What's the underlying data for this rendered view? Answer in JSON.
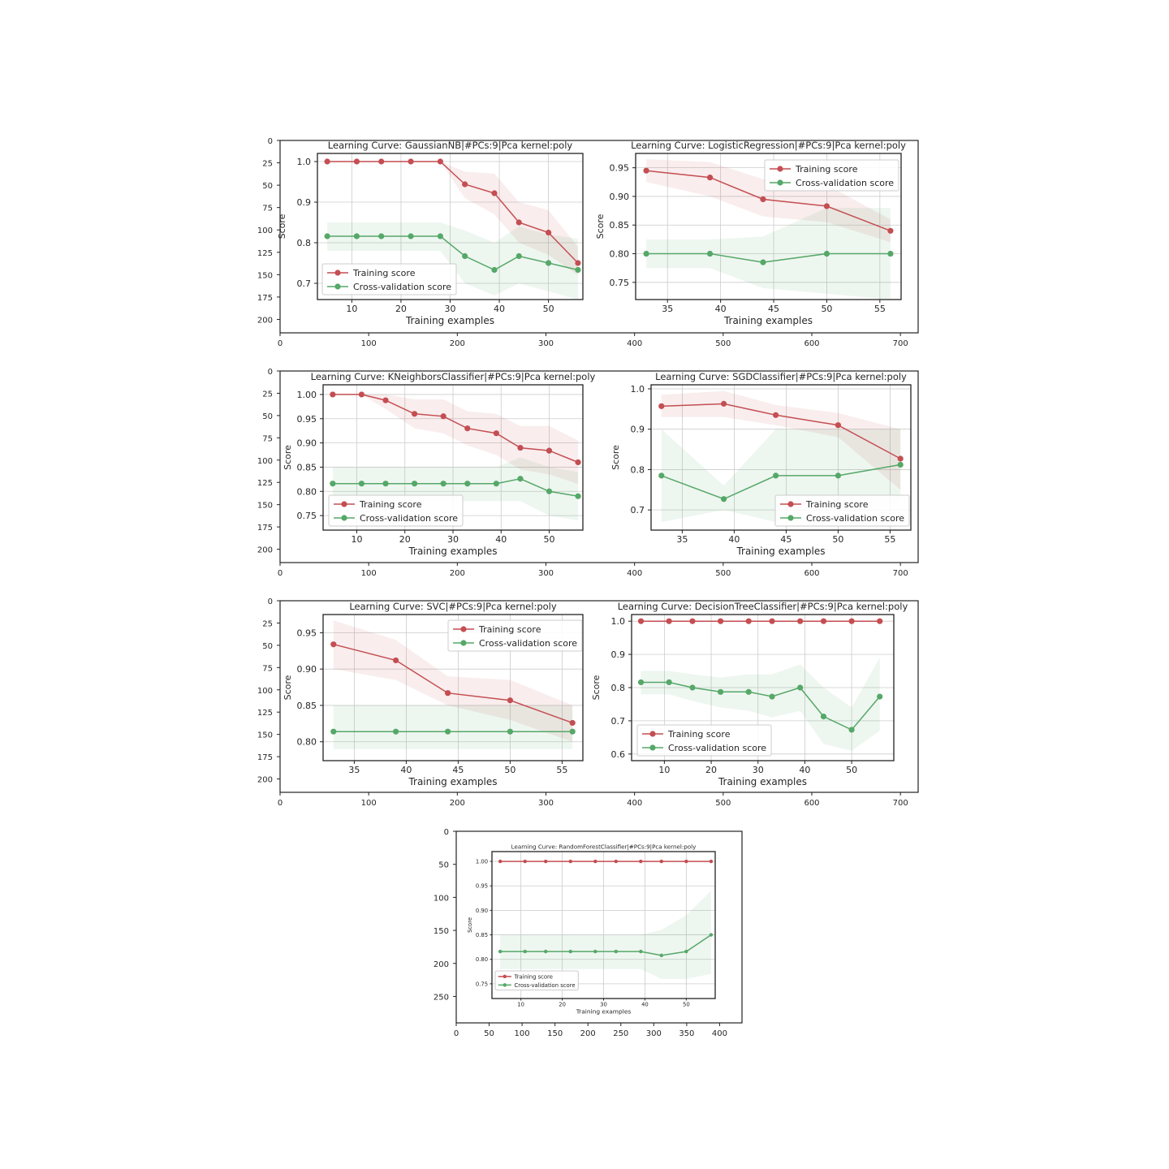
{
  "labels": {
    "training": "Training score",
    "cv": "Cross-validation score",
    "xlabel": "Training examples",
    "ylabel": "Score"
  },
  "colors": {
    "train": "#c44e52",
    "cv": "#55a868",
    "grid": "#cccccc",
    "axis": "#222222"
  },
  "outer_figures": [
    {
      "xticks": [
        0,
        100,
        200,
        300,
        400,
        500,
        600,
        700
      ],
      "yticks": [
        0,
        25,
        50,
        75,
        100,
        125,
        150,
        175,
        200
      ]
    },
    {
      "xticks": [
        0,
        100,
        200,
        300,
        400,
        500,
        600,
        700
      ],
      "yticks": [
        0,
        25,
        50,
        75,
        100,
        125,
        150,
        175,
        200
      ]
    },
    {
      "xticks": [
        0,
        100,
        200,
        300,
        400,
        500,
        600,
        700
      ],
      "yticks": [
        0,
        25,
        50,
        75,
        100,
        125,
        150,
        175,
        200
      ]
    },
    {
      "xticks": [
        0,
        50,
        100,
        150,
        200,
        250,
        300,
        350,
        400
      ],
      "yticks": [
        0,
        50,
        100,
        150,
        200,
        250
      ]
    }
  ],
  "chart_data": [
    {
      "type": "line",
      "title": "Learning Curve: GaussianNB|#PCs:9|Pca kernel:poly",
      "xlabel": "Training examples",
      "ylabel": "Score",
      "xlim": [
        3,
        57
      ],
      "ylim": [
        0.66,
        1.02
      ],
      "xticks": [
        10,
        20,
        30,
        40,
        50
      ],
      "xtick_labels": [
        "10",
        "20",
        "30",
        "40",
        "50"
      ],
      "yticks": [
        0.7,
        0.8,
        0.9,
        1.0
      ],
      "ytick_labels": [
        "0.7",
        "0.8",
        "0.9",
        "1.0"
      ],
      "legend": "bottom-left",
      "x": [
        5,
        11,
        16,
        22,
        28,
        33,
        39,
        44,
        50,
        56
      ],
      "series": [
        {
          "name": "Training score",
          "values": [
            1.0,
            1.0,
            1.0,
            1.0,
            1.0,
            0.944,
            0.922,
            0.85,
            0.825,
            0.75
          ],
          "band_lo": [
            1.0,
            1.0,
            1.0,
            1.0,
            1.0,
            0.91,
            0.87,
            0.8,
            0.77,
            0.72
          ],
          "band_hi": [
            1.0,
            1.0,
            1.0,
            1.0,
            1.0,
            0.975,
            0.97,
            0.9,
            0.88,
            0.79
          ]
        },
        {
          "name": "Cross-validation score",
          "values": [
            0.816,
            0.816,
            0.816,
            0.816,
            0.816,
            0.767,
            0.733,
            0.767,
            0.75,
            0.733
          ],
          "band_lo": [
            0.78,
            0.78,
            0.78,
            0.78,
            0.78,
            0.7,
            0.67,
            0.7,
            0.68,
            0.66
          ],
          "band_hi": [
            0.85,
            0.85,
            0.85,
            0.85,
            0.85,
            0.83,
            0.8,
            0.84,
            0.82,
            0.81
          ]
        }
      ]
    },
    {
      "type": "line",
      "title": "Learning Curve: LogisticRegression|#PCs:9|Pca kernel:poly",
      "xlabel": "Training examples",
      "ylabel": "Score",
      "xlim": [
        32,
        57
      ],
      "ylim": [
        0.72,
        0.975
      ],
      "xticks": [
        35,
        40,
        45,
        50,
        55
      ],
      "xtick_labels": [
        "35",
        "40",
        "45",
        "50",
        "55"
      ],
      "yticks": [
        0.75,
        0.8,
        0.85,
        0.9,
        0.95
      ],
      "ytick_labels": [
        "0.75",
        "0.80",
        "0.85",
        "0.90",
        "0.95"
      ],
      "legend": "top-right",
      "x": [
        33,
        39,
        44,
        50,
        56
      ],
      "series": [
        {
          "name": "Training score",
          "values": [
            0.945,
            0.933,
            0.895,
            0.883,
            0.84
          ],
          "band_lo": [
            0.925,
            0.9,
            0.865,
            0.855,
            0.82
          ],
          "band_hi": [
            0.965,
            0.96,
            0.93,
            0.92,
            0.86
          ]
        },
        {
          "name": "Cross-validation score",
          "values": [
            0.8,
            0.8,
            0.785,
            0.8,
            0.8
          ],
          "band_lo": [
            0.775,
            0.775,
            0.74,
            0.73,
            0.72
          ],
          "band_hi": [
            0.825,
            0.825,
            0.83,
            0.88,
            0.88
          ]
        }
      ]
    },
    {
      "type": "line",
      "title": "Learning Curve: KNeighborsClassifier|#PCs:9|Pca kernel:poly",
      "xlabel": "Training examples",
      "ylabel": "Score",
      "xlim": [
        3,
        57
      ],
      "ylim": [
        0.72,
        1.02
      ],
      "xticks": [
        10,
        20,
        30,
        40,
        50
      ],
      "xtick_labels": [
        "10",
        "20",
        "30",
        "40",
        "50"
      ],
      "yticks": [
        0.75,
        0.8,
        0.85,
        0.9,
        0.95,
        1.0
      ],
      "ytick_labels": [
        "0.75",
        "0.80",
        "0.85",
        "0.90",
        "0.95",
        "1.00"
      ],
      "legend": "bottom-left",
      "x": [
        5,
        11,
        16,
        22,
        28,
        33,
        39,
        44,
        50,
        56
      ],
      "series": [
        {
          "name": "Training score",
          "values": [
            1.0,
            1.0,
            0.988,
            0.96,
            0.955,
            0.93,
            0.92,
            0.89,
            0.884,
            0.86
          ],
          "band_lo": [
            1.0,
            1.0,
            0.97,
            0.93,
            0.92,
            0.895,
            0.875,
            0.845,
            0.835,
            0.815
          ],
          "band_hi": [
            1.0,
            1.0,
            1.0,
            0.99,
            0.99,
            0.965,
            0.96,
            0.935,
            0.935,
            0.905
          ]
        },
        {
          "name": "Cross-validation score",
          "values": [
            0.816,
            0.816,
            0.816,
            0.816,
            0.816,
            0.816,
            0.816,
            0.826,
            0.8,
            0.79
          ],
          "band_lo": [
            0.78,
            0.78,
            0.78,
            0.78,
            0.78,
            0.78,
            0.78,
            0.78,
            0.75,
            0.74
          ],
          "band_hi": [
            0.85,
            0.85,
            0.85,
            0.85,
            0.85,
            0.85,
            0.85,
            0.87,
            0.85,
            0.84
          ]
        }
      ]
    },
    {
      "type": "line",
      "title": "Learning Curve: SGDClassifier|#PCs:9|Pca kernel:poly",
      "xlabel": "Training examples",
      "ylabel": "Score",
      "xlim": [
        32,
        57
      ],
      "ylim": [
        0.65,
        1.01
      ],
      "xticks": [
        35,
        40,
        45,
        50,
        55
      ],
      "xtick_labels": [
        "35",
        "40",
        "45",
        "50",
        "55"
      ],
      "yticks": [
        0.7,
        0.8,
        0.9,
        1.0
      ],
      "ytick_labels": [
        "0.7",
        "0.8",
        "0.9",
        "1.0"
      ],
      "legend": "bottom-right",
      "x": [
        33,
        39,
        44,
        50,
        56
      ],
      "series": [
        {
          "name": "Training score",
          "values": [
            0.957,
            0.963,
            0.935,
            0.91,
            0.827
          ],
          "band_lo": [
            0.93,
            0.93,
            0.91,
            0.88,
            0.75
          ],
          "band_hi": [
            0.985,
            0.995,
            0.96,
            0.94,
            0.9
          ]
        },
        {
          "name": "Cross-validation score",
          "values": [
            0.785,
            0.727,
            0.785,
            0.785,
            0.812
          ],
          "band_lo": [
            0.67,
            0.7,
            0.67,
            0.67,
            0.72
          ],
          "band_hi": [
            0.9,
            0.76,
            0.9,
            0.9,
            0.9
          ]
        }
      ]
    },
    {
      "type": "line",
      "title": "Learning Curve: SVC|#PCs:9|Pca kernel:poly",
      "xlabel": "Training examples",
      "ylabel": "Score",
      "xlim": [
        32,
        57
      ],
      "ylim": [
        0.774,
        0.975
      ],
      "xticks": [
        35,
        40,
        45,
        50,
        55
      ],
      "xtick_labels": [
        "35",
        "40",
        "45",
        "50",
        "55"
      ],
      "yticks": [
        0.8,
        0.85,
        0.9,
        0.95
      ],
      "ytick_labels": [
        "0.80",
        "0.85",
        "0.90",
        "0.95"
      ],
      "legend": "top-right",
      "x": [
        33,
        39,
        44,
        50,
        56
      ],
      "series": [
        {
          "name": "Training score",
          "values": [
            0.934,
            0.912,
            0.867,
            0.857,
            0.826
          ],
          "band_lo": [
            0.9,
            0.885,
            0.85,
            0.83,
            0.8
          ],
          "band_hi": [
            0.967,
            0.94,
            0.89,
            0.885,
            0.85
          ]
        },
        {
          "name": "Cross-validation score",
          "values": [
            0.814,
            0.814,
            0.814,
            0.814,
            0.814
          ],
          "band_lo": [
            0.79,
            0.79,
            0.79,
            0.79,
            0.79
          ],
          "band_hi": [
            0.85,
            0.85,
            0.85,
            0.85,
            0.85
          ]
        }
      ]
    },
    {
      "type": "line",
      "title": "Learning Curve: DecisionTreeClassifier|#PCs:9|Pca kernel:poly",
      "xlabel": "Training examples",
      "ylabel": "Score",
      "xlim": [
        3,
        59
      ],
      "ylim": [
        0.58,
        1.02
      ],
      "xticks": [
        10,
        20,
        30,
        40,
        50
      ],
      "xtick_labels": [
        "10",
        "20",
        "30",
        "40",
        "50"
      ],
      "yticks": [
        0.6,
        0.7,
        0.8,
        0.9,
        1.0
      ],
      "ytick_labels": [
        "0.6",
        "0.7",
        "0.8",
        "0.9",
        "1.0"
      ],
      "legend": "bottom-left",
      "x": [
        5,
        11,
        16,
        22,
        28,
        33,
        39,
        44,
        50,
        56
      ],
      "series": [
        {
          "name": "Training score",
          "values": [
            1.0,
            1.0,
            1.0,
            1.0,
            1.0,
            1.0,
            1.0,
            1.0,
            1.0,
            1.0
          ],
          "band_lo": [
            1.0,
            1.0,
            1.0,
            1.0,
            1.0,
            1.0,
            1.0,
            1.0,
            1.0,
            1.0
          ],
          "band_hi": [
            1.0,
            1.0,
            1.0,
            1.0,
            1.0,
            1.0,
            1.0,
            1.0,
            1.0,
            1.0
          ]
        },
        {
          "name": "Cross-validation score",
          "values": [
            0.816,
            0.816,
            0.8,
            0.787,
            0.787,
            0.773,
            0.8,
            0.713,
            0.673,
            0.773
          ],
          "band_lo": [
            0.78,
            0.78,
            0.76,
            0.74,
            0.73,
            0.71,
            0.73,
            0.63,
            0.61,
            0.67
          ],
          "band_hi": [
            0.85,
            0.85,
            0.84,
            0.83,
            0.84,
            0.84,
            0.87,
            0.8,
            0.74,
            0.89
          ]
        }
      ]
    },
    {
      "type": "line",
      "title": "Learning Curve: RandomForestClassifier|#PCs:9|Pca kernel:poly",
      "xlabel": "Training examples",
      "ylabel": "Score",
      "xlim": [
        3,
        57
      ],
      "ylim": [
        0.72,
        1.02
      ],
      "xticks": [
        10,
        20,
        30,
        40,
        50
      ],
      "xtick_labels": [
        "10",
        "20",
        "30",
        "40",
        "50"
      ],
      "yticks": [
        0.75,
        0.8,
        0.85,
        0.9,
        0.95,
        1.0
      ],
      "ytick_labels": [
        "0.75",
        "0.80",
        "0.85",
        "0.90",
        "0.95",
        "1.00"
      ],
      "legend": "bottom-left",
      "x": [
        5,
        11,
        16,
        22,
        28,
        33,
        39,
        44,
        50,
        56
      ],
      "series": [
        {
          "name": "Training score",
          "values": [
            1.0,
            1.0,
            1.0,
            1.0,
            1.0,
            1.0,
            1.0,
            1.0,
            1.0,
            1.0
          ],
          "band_lo": [
            1.0,
            1.0,
            1.0,
            1.0,
            1.0,
            1.0,
            1.0,
            1.0,
            1.0,
            1.0
          ],
          "band_hi": [
            1.0,
            1.0,
            1.0,
            1.0,
            1.0,
            1.0,
            1.0,
            1.0,
            1.0,
            1.0
          ]
        },
        {
          "name": "Cross-validation score",
          "values": [
            0.816,
            0.816,
            0.816,
            0.816,
            0.816,
            0.816,
            0.816,
            0.808,
            0.816,
            0.85
          ],
          "band_lo": [
            0.78,
            0.78,
            0.78,
            0.78,
            0.78,
            0.78,
            0.78,
            0.76,
            0.76,
            0.77
          ],
          "band_hi": [
            0.85,
            0.85,
            0.85,
            0.85,
            0.85,
            0.85,
            0.85,
            0.86,
            0.89,
            0.94
          ]
        }
      ]
    }
  ]
}
